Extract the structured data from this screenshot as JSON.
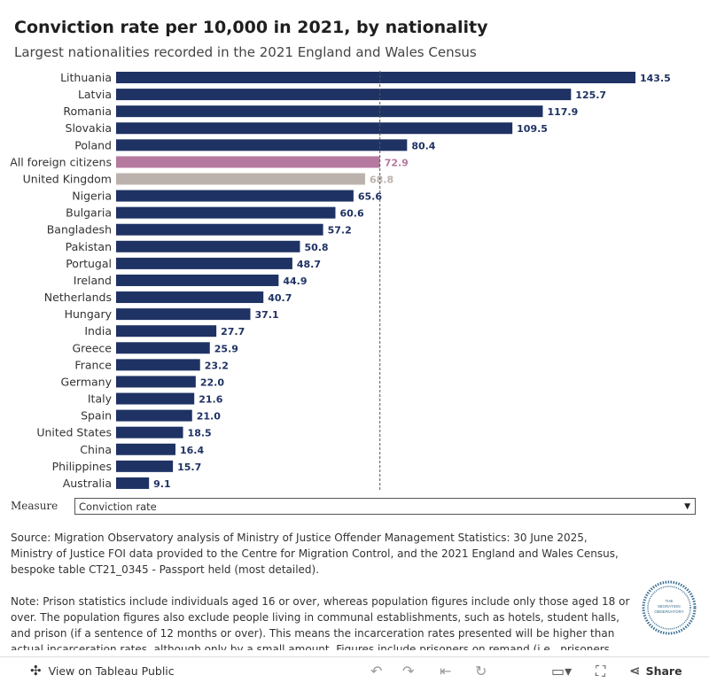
{
  "title": "Conviction rate per 10,000 in 2021, by nationality",
  "subtitle": "Largest nationalities recorded in the 2021 England and Wales Census",
  "chart_data": {
    "type": "bar",
    "orientation": "horizontal",
    "categories": [
      "Lithuania",
      "Latvia",
      "Romania",
      "Slovakia",
      "Poland",
      "All foreign citizens",
      "United Kingdom",
      "Nigeria",
      "Bulgaria",
      "Bangladesh",
      "Pakistan",
      "Portugal",
      "Ireland",
      "Netherlands",
      "Hungary",
      "India",
      "Greece",
      "France",
      "Germany",
      "Italy",
      "Spain",
      "United States",
      "China",
      "Philippines",
      "Australia"
    ],
    "values": [
      143.5,
      125.7,
      117.9,
      109.5,
      80.4,
      72.9,
      68.8,
      65.6,
      60.6,
      57.2,
      50.8,
      48.7,
      44.9,
      40.7,
      37.1,
      27.7,
      25.9,
      23.2,
      22.0,
      21.6,
      21.0,
      18.5,
      16.4,
      15.7,
      9.1
    ],
    "value_labels": [
      "143.5",
      "125.7",
      "117.9",
      "109.5",
      "80.4",
      "72.9",
      "68.8",
      "65.6",
      "60.6",
      "57.2",
      "50.8",
      "48.7",
      "44.9",
      "40.7",
      "37.1",
      "27.7",
      "25.9",
      "23.2",
      "22.0",
      "21.6",
      "21.0",
      "18.5",
      "16.4",
      "15.7",
      "9.1"
    ],
    "reference_line": 72.9,
    "grid": false,
    "colors": {
      "default": "#1f3264",
      "All foreign citizens": "#b5799f",
      "United Kingdom": "#bcb2ad"
    },
    "label_colors": {
      "default": "#1f3264",
      "All foreign citizens": "#b5799f",
      "United Kingdom": "#bcb2ad"
    }
  },
  "measure": {
    "label": "Measure",
    "selected": "Conviction rate"
  },
  "source_text": "Source: Migration Observatory analysis of Ministry of Justice Offender Management Statistics: 30 June 2025, Ministry of Justice FOI data provided to the Centre for Migration Control, and the 2021 England and Wales Census, bespoke table CT21_0345 - Passport held (most detailed).",
  "note_text": "Note: Prison statistics include individuals aged 16 or over, whereas population figures include only those aged 18 or over. The population figures also exclude people living in communal establishments, such as hotels, student halls, and prison (if a sentence of 12 months or over). This means the incarceration rates presented will be higher than actual incarceration rates, although only by a small amount. Figures include prisoners on remand (i.e., prisoners awaiting trial or sentencing).",
  "logo": {
    "lines": [
      "THE",
      "MIGRATION",
      "OBSERVATORY"
    ],
    "color": "#3a6f93"
  },
  "toolbar": {
    "view_label": "View on Tableau Public",
    "share_label": "Share",
    "icons": [
      "tableau-icon",
      "undo-icon",
      "redo-icon",
      "revert-icon",
      "forward-icon",
      "comment-icon",
      "fullscreen-icon",
      "share-icon"
    ]
  }
}
